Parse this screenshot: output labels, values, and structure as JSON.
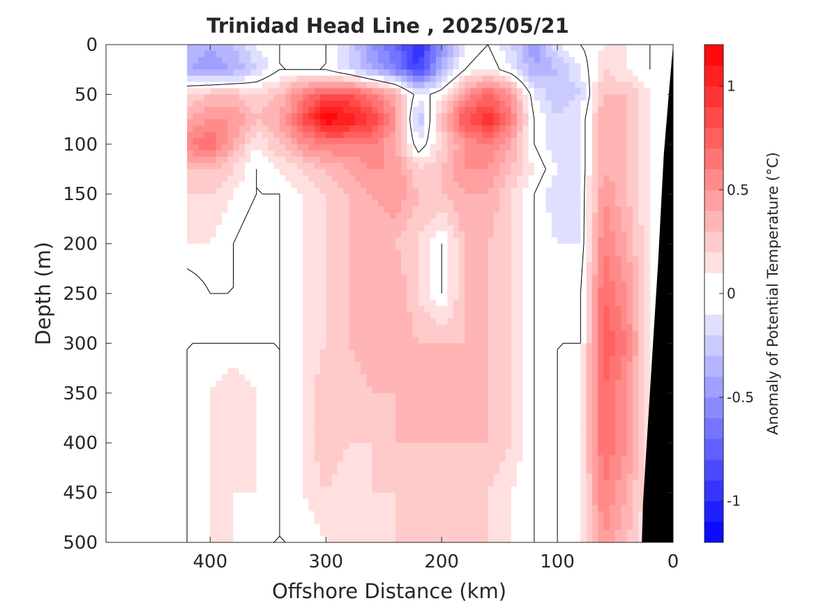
{
  "chart_data": {
    "type": "heatmap",
    "title": "Trinidad Head Line , 2025/05/21",
    "xlabel": "Offshore Distance (km)",
    "ylabel": "Depth (m)",
    "xlim": [
      490,
      0
    ],
    "ylim": [
      0,
      500
    ],
    "x_reversed": true,
    "y_reversed": true,
    "x_ticks": [
      400,
      300,
      200,
      100,
      0
    ],
    "y_ticks": [
      0,
      50,
      100,
      150,
      200,
      250,
      300,
      350,
      400,
      450,
      500
    ],
    "colorbar": {
      "label": "Anomaly of Potential Temperature (°C)",
      "range": [
        -1.2,
        1.2
      ],
      "ticks": [
        1,
        0.5,
        0,
        -0.5,
        -1
      ],
      "tick_labels": [
        "1",
        "0.5",
        "0",
        "-0.5",
        "-1"
      ],
      "levels": 24,
      "colormap": "blue-white-red",
      "neg_color": "#0000ff",
      "pos_color": "#ff0000",
      "mid_color": "#ffffff"
    },
    "zero_contour": true,
    "bathymetry_color": "#000000",
    "data_x_range": [
      420,
      20
    ],
    "distance_km": [
      420,
      400,
      380,
      360,
      340,
      320,
      300,
      280,
      260,
      240,
      220,
      200,
      180,
      160,
      140,
      120,
      100,
      80,
      60,
      40,
      20
    ],
    "depth_m": [
      0,
      25,
      50,
      75,
      100,
      125,
      150,
      200,
      250,
      300,
      350,
      400,
      450,
      500
    ],
    "anomaly": [
      [
        -0.3,
        -0.4,
        -0.3,
        -0.1,
        0.0,
        0.1,
        0.0,
        -0.2,
        -0.5,
        -0.7,
        -1.0,
        -0.5,
        -0.1,
        0.0,
        -0.2,
        -0.5,
        -0.1,
        0.0,
        0.1,
        0.1,
        0.0
      ],
      [
        -0.4,
        -0.5,
        -0.4,
        -0.2,
        0.0,
        0.0,
        0.0,
        -0.2,
        -0.4,
        -0.6,
        -0.9,
        -0.4,
        0.0,
        0.1,
        -0.1,
        -0.4,
        -0.3,
        -0.1,
        0.2,
        0.1,
        0.0
      ],
      [
        0.2,
        0.3,
        0.3,
        0.2,
        0.3,
        0.6,
        0.8,
        0.8,
        0.6,
        0.4,
        -0.1,
        0.1,
        0.5,
        0.7,
        0.5,
        -0.1,
        -0.3,
        -0.2,
        0.3,
        0.3,
        0.1
      ],
      [
        0.4,
        0.5,
        0.5,
        0.3,
        0.4,
        0.8,
        1.2,
        1.1,
        0.9,
        0.5,
        -0.3,
        0.3,
        0.8,
        1.0,
        0.6,
        0.0,
        -0.2,
        -0.1,
        0.4,
        0.3,
        0.1
      ],
      [
        0.6,
        0.7,
        0.4,
        0.1,
        0.3,
        0.5,
        0.6,
        0.6,
        0.6,
        0.4,
        -0.1,
        0.2,
        0.5,
        0.6,
        0.4,
        0.0,
        -0.2,
        -0.1,
        0.4,
        0.3,
        0.1
      ],
      [
        0.3,
        0.3,
        0.2,
        0.0,
        0.1,
        0.2,
        0.3,
        0.4,
        0.5,
        0.5,
        0.2,
        0.3,
        0.5,
        0.5,
        0.3,
        0.1,
        -0.1,
        -0.1,
        0.4,
        0.3,
        0.1
      ],
      [
        0.2,
        0.2,
        0.1,
        0.0,
        0.0,
        0.1,
        0.2,
        0.3,
        0.4,
        0.5,
        0.3,
        0.3,
        0.4,
        0.4,
        0.2,
        0.0,
        -0.2,
        -0.1,
        0.5,
        0.3,
        0.1
      ],
      [
        0.1,
        0.1,
        0.0,
        -0.1,
        0.0,
        0.1,
        0.2,
        0.3,
        0.3,
        0.3,
        0.2,
        0.0,
        0.3,
        0.3,
        0.2,
        0.0,
        -0.1,
        -0.1,
        0.6,
        0.4,
        0.1
      ],
      [
        -0.1,
        0.0,
        0.0,
        0.0,
        0.0,
        0.1,
        0.2,
        0.3,
        0.3,
        0.4,
        0.2,
        0.0,
        0.3,
        0.3,
        0.2,
        0.0,
        0.0,
        0.0,
        0.7,
        0.5,
        0.1
      ],
      [
        0.0,
        0.0,
        0.0,
        0.0,
        0.0,
        0.1,
        0.2,
        0.3,
        0.4,
        0.4,
        0.3,
        0.3,
        0.3,
        0.3,
        0.2,
        0.0,
        0.0,
        0.0,
        0.8,
        0.6,
        0.1
      ],
      [
        0.0,
        0.1,
        0.2,
        0.1,
        0.0,
        0.1,
        0.3,
        0.2,
        0.3,
        0.3,
        0.3,
        0.3,
        0.3,
        0.3,
        0.2,
        0.0,
        0.0,
        0.1,
        0.7,
        0.5,
        0.1
      ],
      [
        0.0,
        0.1,
        0.2,
        0.1,
        0.0,
        0.1,
        0.3,
        0.2,
        0.2,
        0.3,
        0.3,
        0.3,
        0.3,
        0.3,
        0.2,
        0.0,
        0.0,
        0.1,
        0.7,
        0.5,
        0.1
      ],
      [
        0.0,
        0.1,
        0.1,
        0.1,
        0.0,
        0.1,
        0.2,
        0.1,
        0.2,
        0.2,
        0.2,
        0.2,
        0.2,
        0.2,
        0.1,
        0.0,
        0.0,
        0.1,
        0.6,
        0.4,
        0.1
      ],
      [
        0.0,
        0.1,
        0.1,
        0.0,
        0.0,
        0.0,
        0.1,
        0.1,
        0.1,
        0.2,
        0.2,
        0.2,
        0.2,
        0.2,
        0.1,
        0.0,
        0.0,
        0.1,
        0.5,
        0.3,
        0.1
      ]
    ]
  }
}
